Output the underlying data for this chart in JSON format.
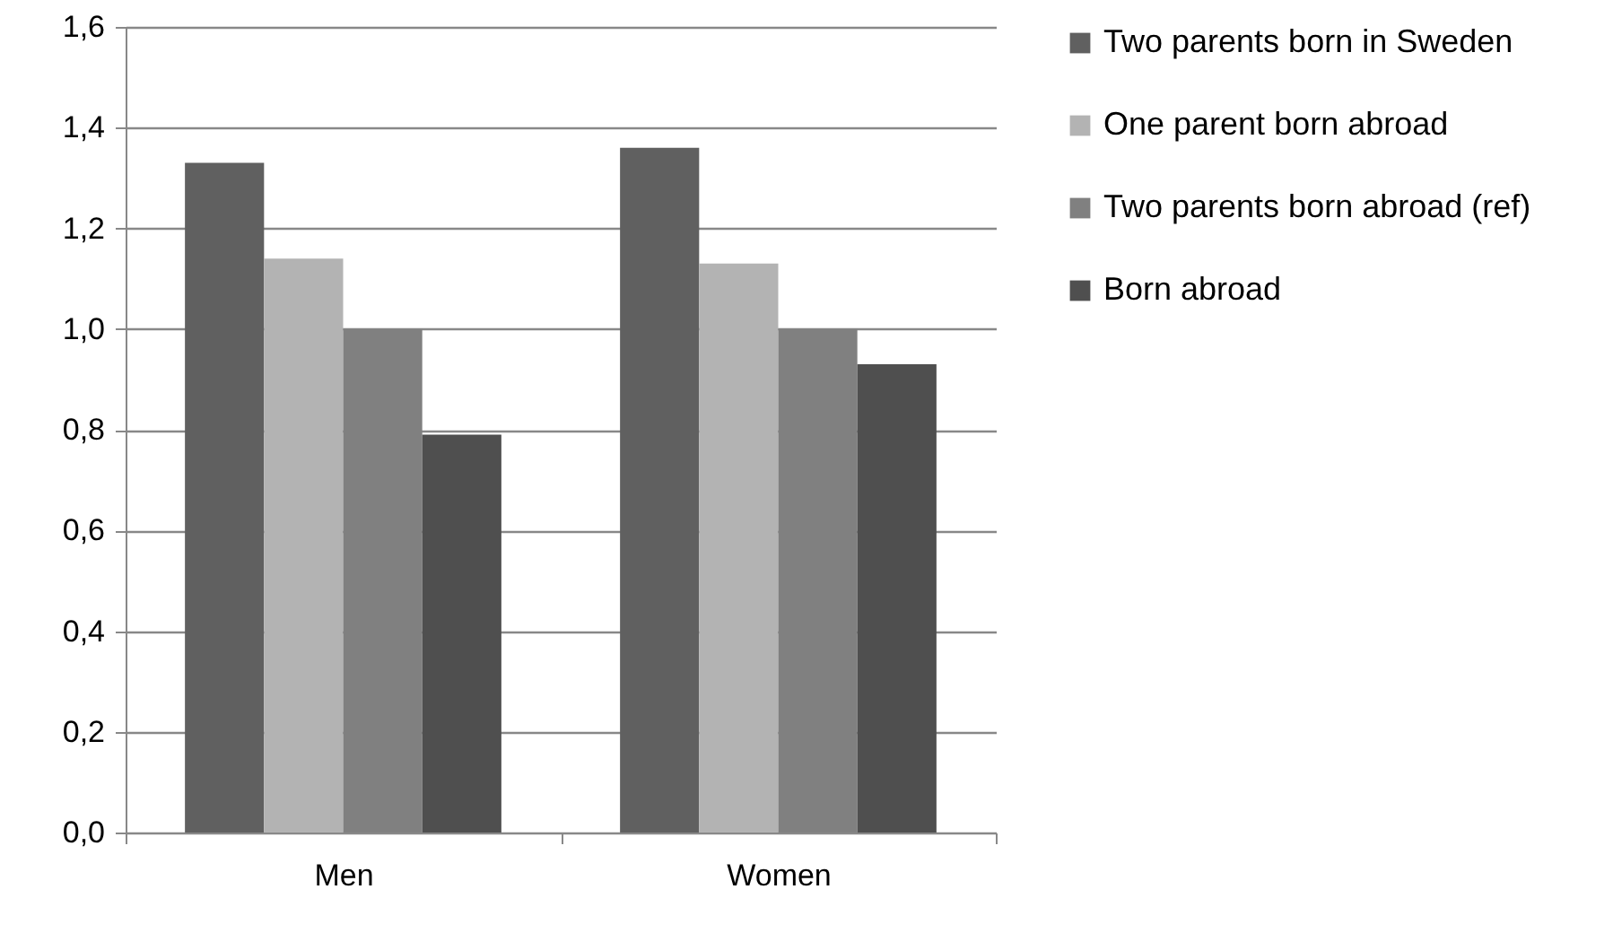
{
  "chart_data": {
    "type": "bar",
    "categories": [
      "Men",
      "Women"
    ],
    "series": [
      {
        "name": "Two parents born in Sweden",
        "color": "#606060",
        "values": [
          1.33,
          1.36
        ]
      },
      {
        "name": "One parent born abroad",
        "color": "#b3b3b3",
        "values": [
          1.14,
          1.13
        ]
      },
      {
        "name": "Two parents born abroad (ref)",
        "color": "#808080",
        "values": [
          1.0,
          1.0
        ]
      },
      {
        "name": "Born abroad",
        "color": "#4f4f4f",
        "values": [
          0.79,
          0.93
        ]
      }
    ],
    "ylim": [
      0,
      1.6
    ],
    "yticks": [
      {
        "value": 0,
        "label": "0,0"
      },
      {
        "value": 0.2,
        "label": "0,2"
      },
      {
        "value": 0.4,
        "label": "0,4"
      },
      {
        "value": 0.6,
        "label": "0,6"
      },
      {
        "value": 0.8,
        "label": "0,8"
      },
      {
        "value": 1.0,
        "label": "1,0"
      },
      {
        "value": 1.2,
        "label": "1,2"
      },
      {
        "value": 1.4,
        "label": "1,4"
      },
      {
        "value": 1.6,
        "label": "1,6"
      }
    ],
    "grid": "y",
    "legend": "right"
  }
}
